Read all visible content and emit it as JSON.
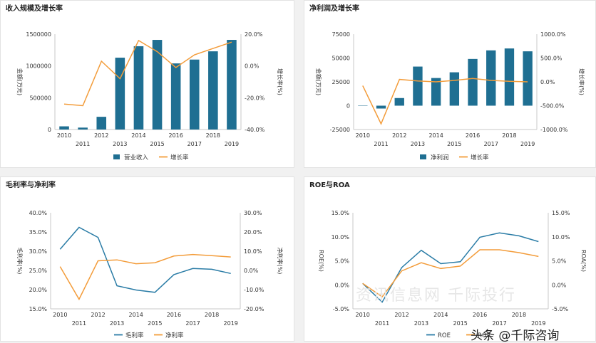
{
  "panels": [
    {
      "title": "收入规模及增长率"
    },
    {
      "title": "净利润及增长率"
    },
    {
      "title": "毛利率与净利率"
    },
    {
      "title": "ROE与ROA"
    }
  ],
  "watermark": "头条 @千际咨询",
  "background_mark": "资讯信息网 千际投行",
  "chart_data": [
    {
      "type": "bar+line",
      "title": "收入规模及增长率",
      "categories": [
        "2010",
        "2011",
        "2012",
        "2013",
        "2014",
        "2015",
        "2016",
        "2017",
        "2018",
        "2019"
      ],
      "bar_series": {
        "name": "营业收入",
        "color": "#1f6f92",
        "values": [
          50000,
          30000,
          200000,
          1130000,
          1310000,
          1410000,
          1040000,
          1100000,
          1230000,
          1410000
        ]
      },
      "line_series": {
        "name": "增长率",
        "color": "#f39c3a",
        "values": [
          -24,
          -25,
          3,
          -8,
          16,
          9,
          -1,
          7,
          11,
          15
        ]
      },
      "y_left": {
        "label": "金额(万元)",
        "ylim": [
          0,
          1500000
        ],
        "ticks": [
          0,
          500000,
          1000000,
          1500000
        ],
        "tick_labels": [
          "0",
          "500000",
          "1000000",
          "1500000"
        ]
      },
      "y_right": {
        "label": "增长率(%)",
        "ylim": [
          -40,
          20
        ],
        "ticks": [
          -40,
          -20,
          0,
          20
        ],
        "tick_labels": [
          "-40.0%",
          "-20.0%",
          "0.0%",
          "20.0%"
        ]
      }
    },
    {
      "type": "bar+line",
      "title": "净利润及增长率",
      "categories": [
        "2010",
        "2011",
        "2012",
        "2013",
        "2014",
        "2015",
        "2016",
        "2017",
        "2018",
        "2019"
      ],
      "bar_series": {
        "name": "净利润",
        "color": "#1f6f92",
        "values": [
          0,
          -3000,
          8000,
          41000,
          29000,
          35000,
          49000,
          58000,
          60000,
          57000
        ]
      },
      "line_series": {
        "name": "增长率",
        "color": "#f39c3a",
        "values": [
          -80,
          -880,
          50,
          20,
          0,
          30,
          70,
          30,
          10,
          0
        ]
      },
      "y_left": {
        "label": "金额(万元)",
        "ylim": [
          -25000,
          75000
        ],
        "ticks": [
          -25000,
          0,
          25000,
          50000,
          75000
        ],
        "tick_labels": [
          "-25000",
          "0",
          "25000",
          "50000",
          "75000"
        ]
      },
      "y_right": {
        "label": "增长率(%)",
        "ylim": [
          -1000,
          1000
        ],
        "ticks": [
          -1000,
          -500,
          0,
          500,
          1000
        ],
        "tick_labels": [
          "-1000.0%",
          "-500.0%",
          "0.0%",
          "500.0%",
          "1000.0%"
        ]
      }
    },
    {
      "type": "line",
      "title": "毛利率与净利率",
      "categories": [
        "2010",
        "2011",
        "2012",
        "2013",
        "2014",
        "2015",
        "2016",
        "2017",
        "2018",
        "2019"
      ],
      "left_series": {
        "name": "毛利率",
        "color": "#2a7ca6",
        "values": [
          30.5,
          36.2,
          33.6,
          21.0,
          19.9,
          19.3,
          23.9,
          25.5,
          25.3,
          24.2
        ]
      },
      "right_series": {
        "name": "净利率",
        "color": "#f39c3a",
        "values": [
          2,
          -15,
          5,
          5.5,
          3.5,
          4,
          7.5,
          8.3,
          7.7,
          7
        ]
      },
      "y_left": {
        "label": "毛利率(%)",
        "ylim": [
          15,
          40
        ],
        "ticks": [
          15,
          20,
          25,
          30,
          35,
          40
        ],
        "tick_labels": [
          "15.0%",
          "20.0%",
          "25.0%",
          "30.0%",
          "35.0%",
          "40.0%"
        ]
      },
      "y_right": {
        "label": "净利率(%)",
        "ylim": [
          -20,
          30
        ],
        "ticks": [
          -20,
          -10,
          0,
          10,
          20,
          30
        ],
        "tick_labels": [
          "-20.0%",
          "-10.0%",
          "0.0%",
          "10.0%",
          "20.0%",
          "30.0%"
        ]
      }
    },
    {
      "type": "line",
      "title": "ROE与ROA",
      "categories": [
        "2010",
        "2011",
        "2012",
        "2013",
        "2014",
        "2015",
        "2016",
        "2017",
        "2018",
        "2019"
      ],
      "left_series": {
        "name": "ROE",
        "color": "#2a7ca6",
        "values": [
          0.3,
          -3.6,
          3.6,
          7.2,
          4.4,
          4.8,
          9.9,
          10.8,
          10.2,
          9.0
        ]
      },
      "right_series": {
        "name": "ROA",
        "color": "#f39c3a",
        "values": [
          0.3,
          -2.5,
          2.9,
          4.6,
          3.4,
          3.9,
          7.3,
          7.3,
          6.7,
          5.9
        ]
      },
      "y_left": {
        "label": "ROE(%)",
        "ylim": [
          -5,
          15
        ],
        "ticks": [
          -5,
          0,
          5,
          10,
          15
        ],
        "tick_labels": [
          "-5.0%",
          "0.0%",
          "5.0%",
          "10.0%",
          "15.0%"
        ]
      },
      "y_right": {
        "label": "ROA(%)",
        "ylim": [
          -5,
          15
        ],
        "ticks": [
          -5,
          0,
          5,
          10,
          15
        ],
        "tick_labels": [
          "-5.0%",
          "0.0%",
          "5.0%",
          "10.0%",
          "15.0%"
        ]
      }
    }
  ]
}
